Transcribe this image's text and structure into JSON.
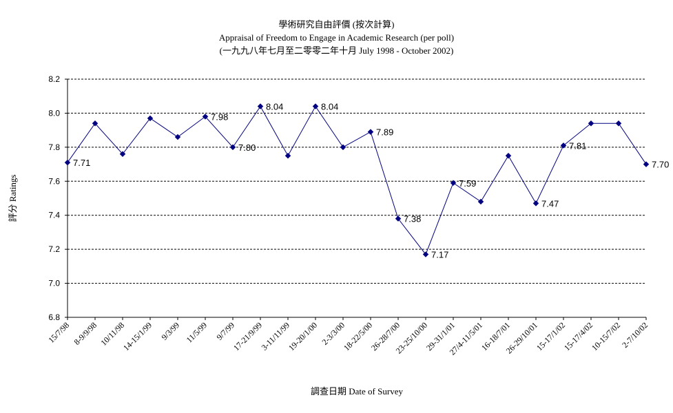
{
  "chart_data": {
    "type": "line",
    "title": "學術研究自由評價 (按次計算)",
    "subtitle": "Appraisal of Freedom to Engage in Academic Research (per poll)",
    "subtitle2": "(一九九八年七月至二零零二年十月 July 1998 - October 2002)",
    "xlabel": "調查日期 Date of Survey",
    "ylabel": "評分 Ratings",
    "ylim": [
      6.8,
      8.2
    ],
    "yticks": [
      "6.8",
      "7.0",
      "7.2",
      "7.4",
      "7.6",
      "7.8",
      "8.0",
      "8.2"
    ],
    "categories": [
      "15/7/98",
      "8-9/9/98",
      "10/11/98",
      "14-15/1/99",
      "9/3/99",
      "11/5/99",
      "9/7/99",
      "17-21/9/99",
      "3-11/11/99",
      "19-20/1/00",
      "2-3/3/00",
      "18-22/5/00",
      "26-28/7/00",
      "23-25/10/00",
      "29-31/1/01",
      "27/4-11/5/01",
      "16-18/7/01",
      "26-29/10/01",
      "15-17/1/02",
      "15-17/4/02",
      "10-15/7/02",
      "2-7/10/02"
    ],
    "series": [
      {
        "values": [
          7.71,
          7.94,
          7.76,
          7.97,
          7.86,
          7.98,
          7.8,
          8.04,
          7.75,
          8.04,
          7.8,
          7.89,
          7.38,
          7.17,
          7.59,
          7.48,
          7.75,
          7.47,
          7.81,
          7.94,
          7.94,
          7.7
        ],
        "data_labels": [
          "7.71",
          "",
          "",
          "",
          "",
          "7.98",
          "7.80",
          "8.04",
          "",
          "8.04",
          "",
          "7.89",
          "7.38",
          "7.17",
          "7.59",
          "",
          "",
          "7.47",
          "7.81",
          "",
          "",
          "7.70"
        ]
      }
    ],
    "colors": {
      "line": "#000080",
      "marker": "#000080",
      "grid": "#000000"
    },
    "grid": "horizontal dashed",
    "legend": "none"
  }
}
